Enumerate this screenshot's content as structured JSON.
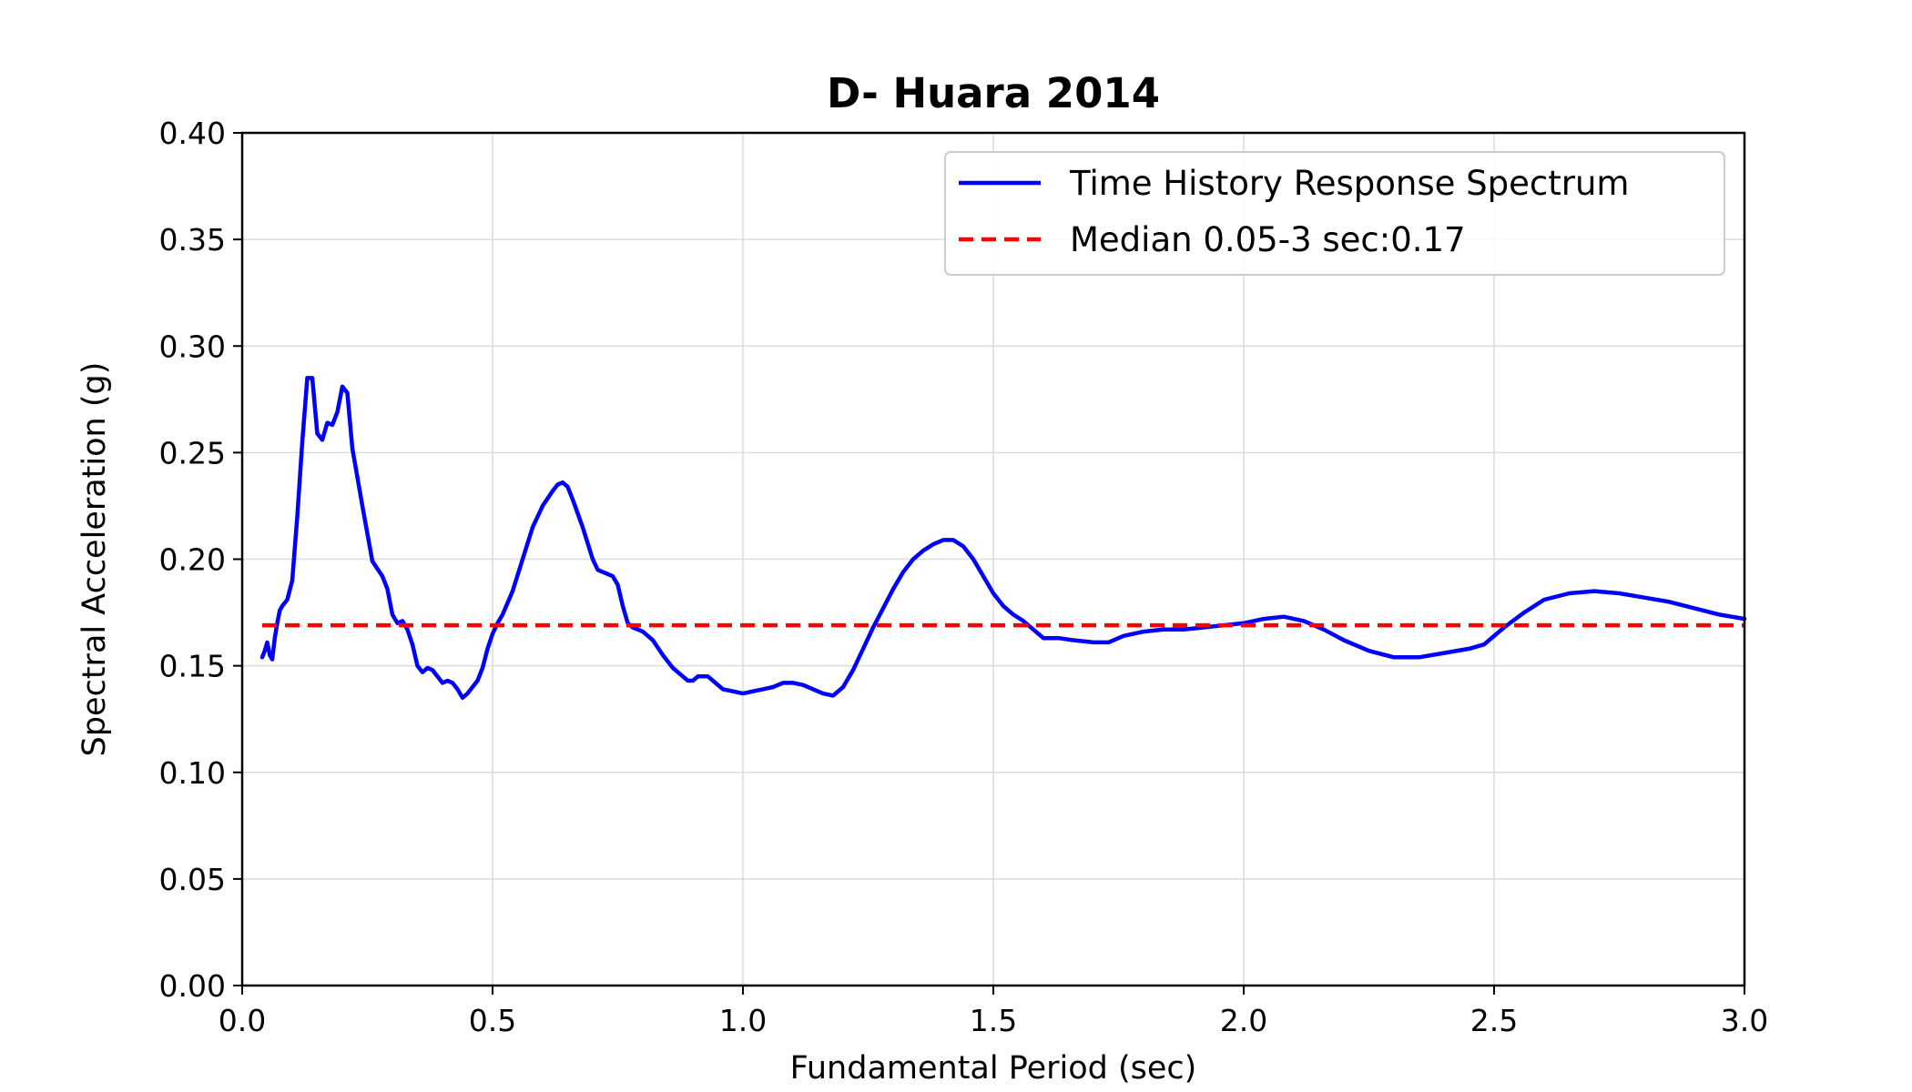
{
  "chart_data": {
    "type": "line",
    "title": "D- Huara 2014",
    "xlabel": "Fundamental Period (sec)",
    "ylabel": "Spectral Acceleration (g)",
    "xlim": [
      0.0,
      3.0
    ],
    "ylim": [
      0.0,
      0.4
    ],
    "xticks": [
      0.0,
      0.5,
      1.0,
      1.5,
      2.0,
      2.5,
      3.0
    ],
    "xtick_labels": [
      "0.0",
      "0.5",
      "1.0",
      "1.5",
      "2.0",
      "2.5",
      "3.0"
    ],
    "yticks": [
      0.0,
      0.05,
      0.1,
      0.15,
      0.2,
      0.25,
      0.3,
      0.35,
      0.4
    ],
    "ytick_labels": [
      "0.00",
      "0.05",
      "0.10",
      "0.15",
      "0.20",
      "0.25",
      "0.30",
      "0.35",
      "0.40"
    ],
    "grid": true,
    "legend_position": "top-right",
    "series": [
      {
        "name": "Time History Response Spectrum",
        "color": "#0000ff",
        "style": "solid",
        "points": [
          [
            0.04,
            0.154
          ],
          [
            0.045,
            0.157
          ],
          [
            0.05,
            0.161
          ],
          [
            0.055,
            0.155
          ],
          [
            0.06,
            0.153
          ],
          [
            0.065,
            0.163
          ],
          [
            0.07,
            0.17
          ],
          [
            0.075,
            0.176
          ],
          [
            0.08,
            0.178
          ],
          [
            0.09,
            0.181
          ],
          [
            0.1,
            0.19
          ],
          [
            0.11,
            0.22
          ],
          [
            0.12,
            0.255
          ],
          [
            0.13,
            0.285
          ],
          [
            0.14,
            0.285
          ],
          [
            0.15,
            0.259
          ],
          [
            0.16,
            0.256
          ],
          [
            0.17,
            0.264
          ],
          [
            0.18,
            0.263
          ],
          [
            0.19,
            0.269
          ],
          [
            0.2,
            0.281
          ],
          [
            0.21,
            0.278
          ],
          [
            0.22,
            0.252
          ],
          [
            0.24,
            0.225
          ],
          [
            0.26,
            0.199
          ],
          [
            0.28,
            0.192
          ],
          [
            0.29,
            0.186
          ],
          [
            0.3,
            0.174
          ],
          [
            0.31,
            0.17
          ],
          [
            0.32,
            0.171
          ],
          [
            0.33,
            0.167
          ],
          [
            0.34,
            0.16
          ],
          [
            0.35,
            0.15
          ],
          [
            0.36,
            0.147
          ],
          [
            0.37,
            0.149
          ],
          [
            0.38,
            0.148
          ],
          [
            0.39,
            0.145
          ],
          [
            0.4,
            0.142
          ],
          [
            0.41,
            0.143
          ],
          [
            0.42,
            0.142
          ],
          [
            0.43,
            0.139
          ],
          [
            0.44,
            0.135
          ],
          [
            0.45,
            0.137
          ],
          [
            0.46,
            0.14
          ],
          [
            0.47,
            0.143
          ],
          [
            0.48,
            0.149
          ],
          [
            0.49,
            0.158
          ],
          [
            0.5,
            0.165
          ],
          [
            0.51,
            0.17
          ],
          [
            0.52,
            0.174
          ],
          [
            0.54,
            0.185
          ],
          [
            0.56,
            0.2
          ],
          [
            0.58,
            0.215
          ],
          [
            0.6,
            0.225
          ],
          [
            0.62,
            0.232
          ],
          [
            0.63,
            0.235
          ],
          [
            0.64,
            0.236
          ],
          [
            0.65,
            0.234
          ],
          [
            0.66,
            0.228
          ],
          [
            0.68,
            0.215
          ],
          [
            0.7,
            0.2
          ],
          [
            0.71,
            0.195
          ],
          [
            0.72,
            0.194
          ],
          [
            0.74,
            0.192
          ],
          [
            0.75,
            0.188
          ],
          [
            0.76,
            0.178
          ],
          [
            0.77,
            0.17
          ],
          [
            0.78,
            0.168
          ],
          [
            0.8,
            0.166
          ],
          [
            0.82,
            0.162
          ],
          [
            0.84,
            0.155
          ],
          [
            0.86,
            0.149
          ],
          [
            0.88,
            0.145
          ],
          [
            0.89,
            0.143
          ],
          [
            0.9,
            0.143
          ],
          [
            0.91,
            0.145
          ],
          [
            0.93,
            0.145
          ],
          [
            0.94,
            0.143
          ],
          [
            0.96,
            0.139
          ],
          [
            0.98,
            0.138
          ],
          [
            1.0,
            0.137
          ],
          [
            1.02,
            0.138
          ],
          [
            1.04,
            0.139
          ],
          [
            1.06,
            0.14
          ],
          [
            1.08,
            0.142
          ],
          [
            1.1,
            0.142
          ],
          [
            1.12,
            0.141
          ],
          [
            1.14,
            0.139
          ],
          [
            1.16,
            0.137
          ],
          [
            1.18,
            0.136
          ],
          [
            1.2,
            0.14
          ],
          [
            1.22,
            0.148
          ],
          [
            1.24,
            0.158
          ],
          [
            1.26,
            0.168
          ],
          [
            1.28,
            0.177
          ],
          [
            1.3,
            0.186
          ],
          [
            1.32,
            0.194
          ],
          [
            1.34,
            0.2
          ],
          [
            1.36,
            0.204
          ],
          [
            1.38,
            0.207
          ],
          [
            1.4,
            0.209
          ],
          [
            1.42,
            0.209
          ],
          [
            1.44,
            0.206
          ],
          [
            1.46,
            0.2
          ],
          [
            1.48,
            0.192
          ],
          [
            1.5,
            0.184
          ],
          [
            1.52,
            0.178
          ],
          [
            1.54,
            0.174
          ],
          [
            1.56,
            0.171
          ],
          [
            1.58,
            0.167
          ],
          [
            1.6,
            0.163
          ],
          [
            1.63,
            0.163
          ],
          [
            1.66,
            0.162
          ],
          [
            1.7,
            0.161
          ],
          [
            1.73,
            0.161
          ],
          [
            1.76,
            0.164
          ],
          [
            1.8,
            0.166
          ],
          [
            1.84,
            0.167
          ],
          [
            1.88,
            0.167
          ],
          [
            1.92,
            0.168
          ],
          [
            1.96,
            0.169
          ],
          [
            2.0,
            0.17
          ],
          [
            2.04,
            0.172
          ],
          [
            2.08,
            0.173
          ],
          [
            2.12,
            0.171
          ],
          [
            2.16,
            0.167
          ],
          [
            2.2,
            0.162
          ],
          [
            2.25,
            0.157
          ],
          [
            2.3,
            0.154
          ],
          [
            2.35,
            0.154
          ],
          [
            2.4,
            0.156
          ],
          [
            2.45,
            0.158
          ],
          [
            2.48,
            0.16
          ],
          [
            2.52,
            0.168
          ],
          [
            2.56,
            0.175
          ],
          [
            2.6,
            0.181
          ],
          [
            2.65,
            0.184
          ],
          [
            2.7,
            0.185
          ],
          [
            2.75,
            0.184
          ],
          [
            2.8,
            0.182
          ],
          [
            2.85,
            0.18
          ],
          [
            2.9,
            0.177
          ],
          [
            2.95,
            0.174
          ],
          [
            3.0,
            0.172
          ]
        ]
      },
      {
        "name": "Median 0.05-3 sec:0.17",
        "color": "#ff0000",
        "style": "dashed",
        "points": [
          [
            0.04,
            0.169
          ],
          [
            3.0,
            0.169
          ]
        ]
      }
    ]
  }
}
